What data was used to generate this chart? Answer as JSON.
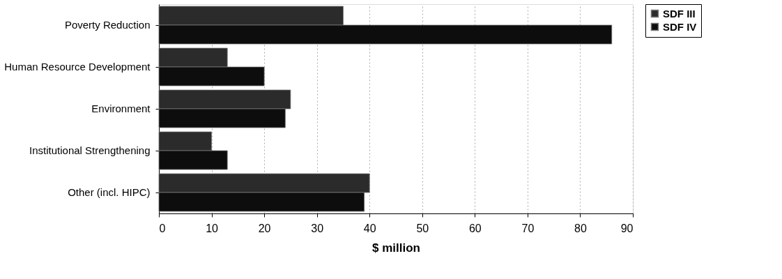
{
  "chart_data": {
    "type": "bar",
    "orientation": "horizontal",
    "xlabel": "$ million",
    "categories": [
      "Poverty Reduction",
      "Human Resource Development",
      "Environment",
      "Institutional Strengthening",
      "Other (incl. HIPC)"
    ],
    "series": [
      {
        "name": "SDF III",
        "color": "#2b2b2b",
        "values": [
          35,
          13,
          25,
          10,
          40
        ]
      },
      {
        "name": "SDF IV",
        "color": "#0d0d0d",
        "values": [
          86,
          20,
          24,
          13,
          39
        ]
      }
    ],
    "xlim": [
      0,
      90
    ],
    "xticks": [
      0,
      10,
      20,
      30,
      40,
      50,
      60,
      70,
      80,
      90
    ],
    "grid": "x",
    "legend": "right"
  }
}
